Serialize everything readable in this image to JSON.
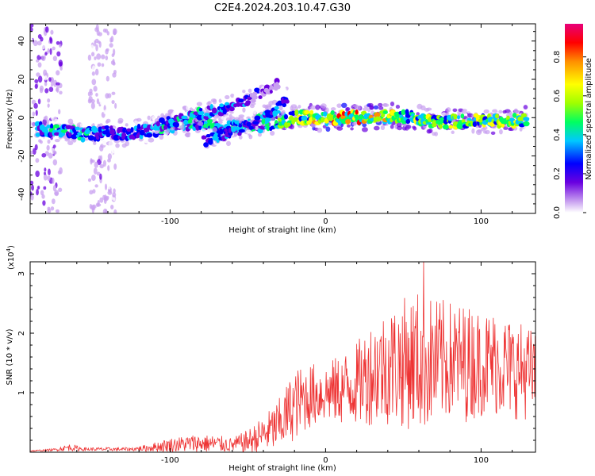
{
  "title": "C2E4.2024.203.10.47.G30",
  "chart_data": [
    {
      "type": "heatmap",
      "xlabel": "Height of straight line (km)",
      "ylabel": "Frequency (Hz)",
      "xlim": [
        -190,
        135
      ],
      "ylim": [
        -50,
        49
      ],
      "xticks": [
        -100,
        0,
        100
      ],
      "xtick_labels": [
        "-100",
        "0",
        "100"
      ],
      "yticks": [
        -40,
        -20,
        0,
        20,
        40
      ],
      "ytick_labels": [
        "-40",
        "-20",
        "0",
        "20",
        "40"
      ],
      "colorbar": {
        "label": "Normalized spectral amplitude",
        "range": [
          0,
          0.97
        ],
        "ticks": [
          0.0,
          0.2,
          0.4,
          0.6,
          0.8
        ],
        "tick_labels": [
          "0.0",
          "0.2",
          "0.4",
          "0.6",
          "0.8"
        ],
        "colormap": [
          "#ffffff",
          "#c8a0f0",
          "#6a00e0",
          "#0000ff",
          "#00c8ff",
          "#00ff60",
          "#a0ff00",
          "#ffff00",
          "#ff9000",
          "#ff0000",
          "#e8007a"
        ]
      },
      "main_trace": [
        {
          "x": -185,
          "y": -6,
          "a": 0.45
        },
        {
          "x": -170,
          "y": -7,
          "a": 0.55
        },
        {
          "x": -155,
          "y": -9,
          "a": 0.5
        },
        {
          "x": -140,
          "y": -8,
          "a": 0.45
        },
        {
          "x": -125,
          "y": -8,
          "a": 0.4
        },
        {
          "x": -110,
          "y": -6,
          "a": 0.45
        },
        {
          "x": -95,
          "y": -4,
          "a": 0.5
        },
        {
          "x": -80,
          "y": -3,
          "a": 0.55
        },
        {
          "x": -65,
          "y": -5,
          "a": 0.5
        },
        {
          "x": -50,
          "y": -5,
          "a": 0.5
        },
        {
          "x": -35,
          "y": -3,
          "a": 0.55
        },
        {
          "x": -20,
          "y": 0,
          "a": 0.7
        },
        {
          "x": -5,
          "y": 0,
          "a": 0.85
        },
        {
          "x": 10,
          "y": 0,
          "a": 0.9
        },
        {
          "x": 25,
          "y": 0,
          "a": 0.85
        },
        {
          "x": 40,
          "y": 1,
          "a": 0.8
        },
        {
          "x": 55,
          "y": 0,
          "a": 0.7
        },
        {
          "x": 70,
          "y": -2,
          "a": 0.75
        },
        {
          "x": 85,
          "y": -2,
          "a": 0.7
        },
        {
          "x": 100,
          "y": -1,
          "a": 0.75
        },
        {
          "x": 115,
          "y": -2,
          "a": 0.7
        },
        {
          "x": 130,
          "y": -1,
          "a": 0.65
        }
      ],
      "branch_trace": [
        {
          "x": -110,
          "y": -5,
          "a": 0.45
        },
        {
          "x": -95,
          "y": -1,
          "a": 0.5
        },
        {
          "x": -80,
          "y": 2,
          "a": 0.5
        },
        {
          "x": -65,
          "y": 5,
          "a": 0.45
        },
        {
          "x": -50,
          "y": 9,
          "a": 0.4
        },
        {
          "x": -40,
          "y": 14,
          "a": 0.3
        },
        {
          "x": -30,
          "y": 18,
          "a": 0.2
        }
      ],
      "lower_branch_trace": [
        {
          "x": -78,
          "y": -12,
          "a": 0.4
        },
        {
          "x": -65,
          "y": -9,
          "a": 0.45
        },
        {
          "x": -50,
          "y": -4,
          "a": 0.45
        },
        {
          "x": -40,
          "y": 0,
          "a": 0.5
        },
        {
          "x": -30,
          "y": 5,
          "a": 0.45
        },
        {
          "x": -25,
          "y": 10,
          "a": 0.3
        }
      ],
      "noise_columns": [
        {
          "x_from": -190,
          "x_to": -170,
          "a": 0.2
        },
        {
          "x_from": -152,
          "x_to": -135,
          "a": 0.15
        }
      ]
    },
    {
      "type": "line",
      "xlabel": "Height of straight line (km)",
      "ylabel": "SNR (10 * v/v)",
      "scale_label_base": "(x10",
      "scale_label_exp": "4",
      "scale_label_end": ")",
      "xlim": [
        -190,
        135
      ],
      "ylim": [
        0,
        3.2
      ],
      "xticks": [
        -100,
        0,
        100
      ],
      "xtick_labels": [
        "-100",
        "0",
        "100"
      ],
      "yticks": [
        1,
        2,
        3
      ],
      "ytick_labels": [
        "1",
        "2",
        "3"
      ],
      "color": "#ee3333",
      "envelope_x": [
        -190,
        -175,
        -165,
        -155,
        -140,
        -125,
        -115,
        -100,
        -85,
        -70,
        -60,
        -50,
        -40,
        -30,
        -20,
        -10,
        0,
        10,
        20,
        30,
        40,
        50,
        60,
        70,
        80,
        90,
        100,
        110,
        120,
        130,
        135
      ],
      "envelope_mean": [
        0.02,
        0.04,
        0.08,
        0.05,
        0.05,
        0.05,
        0.07,
        0.12,
        0.15,
        0.14,
        0.12,
        0.18,
        0.3,
        0.45,
        0.8,
        0.95,
        1.0,
        1.05,
        1.15,
        1.35,
        1.45,
        1.5,
        1.55,
        1.5,
        1.55,
        1.5,
        1.5,
        1.5,
        1.4,
        1.35,
        1.3
      ],
      "envelope_amp": [
        0.01,
        0.02,
        0.06,
        0.03,
        0.03,
        0.03,
        0.06,
        0.12,
        0.15,
        0.15,
        0.12,
        0.2,
        0.3,
        0.45,
        0.6,
        0.55,
        0.5,
        0.6,
        0.7,
        0.9,
        1.0,
        1.1,
        1.2,
        1.1,
        1.0,
        1.0,
        0.9,
        0.9,
        0.85,
        0.8,
        0.7
      ],
      "peak": {
        "x": 63,
        "y": 3.2
      }
    }
  ]
}
